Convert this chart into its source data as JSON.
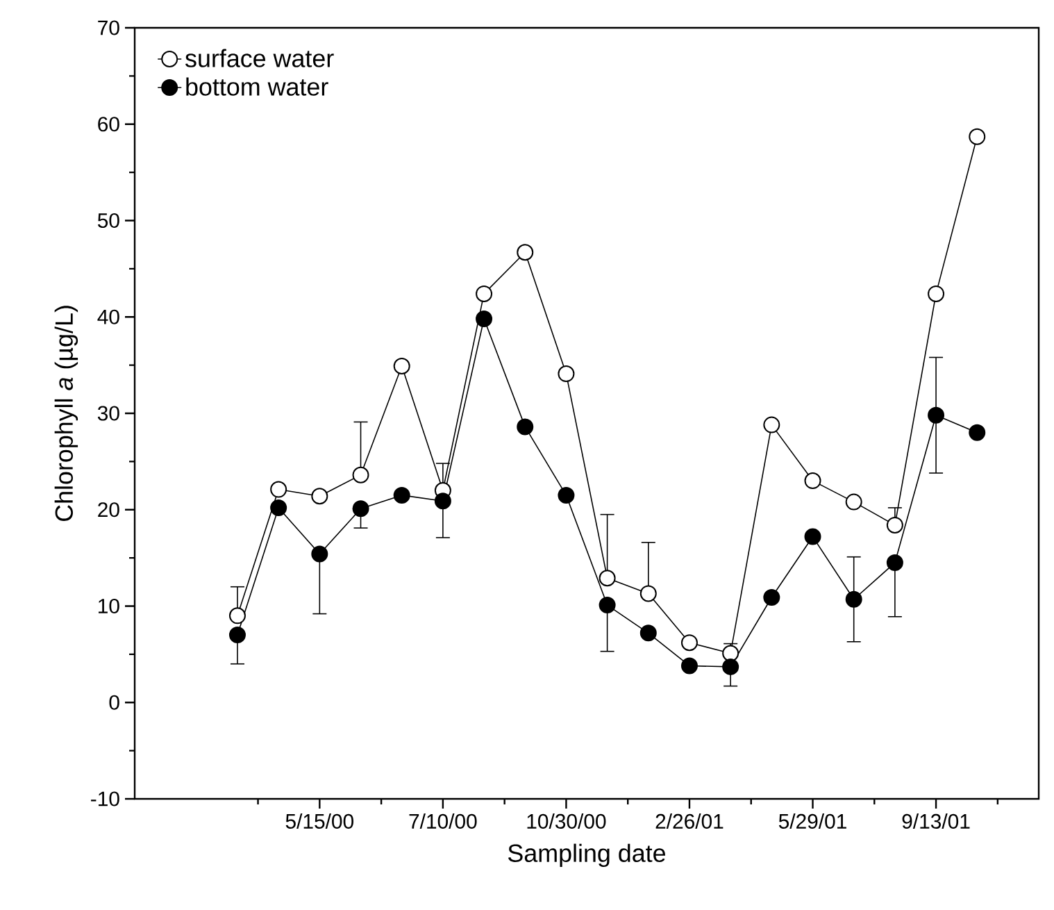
{
  "chart_data": {
    "type": "line",
    "xlabel": "Sampling date",
    "ylabel": "Chlorophyll *a* (µg/L)",
    "categories": [
      null,
      null,
      "5/15/00",
      null,
      null,
      "7/10/00",
      null,
      null,
      "10/30/00",
      null,
      null,
      "2/26/01",
      null,
      null,
      "5/29/01",
      null,
      null,
      "9/13/01",
      null
    ],
    "series": [
      {
        "name": "surface water",
        "color": "#000000",
        "values": [
          9.0,
          22.1,
          21.4,
          23.6,
          34.9,
          22.0,
          42.4,
          46.7,
          34.1,
          12.9,
          11.3,
          6.2,
          5.1,
          28.8,
          23.0,
          20.8,
          18.4,
          42.4,
          58.7
        ],
        "errors": [
          [
            9.0,
            12
          ],
          null,
          null,
          [
            23.6,
            29.1
          ],
          null,
          [
            22.0,
            24.8
          ],
          null,
          null,
          null,
          [
            12.9,
            19.5
          ],
          [
            11.3,
            16.6
          ],
          null,
          [
            5.1,
            6.1
          ],
          null,
          null,
          null,
          [
            18.4,
            20.2
          ],
          null,
          null
        ]
      },
      {
        "name": "bottom water",
        "color": "#000000",
        "values": [
          7.0,
          20.2,
          15.4,
          20.1,
          21.5,
          20.9,
          39.8,
          28.6,
          21.5,
          10.1,
          7.2,
          3.8,
          3.7,
          10.9,
          17.2,
          10.7,
          14.5,
          29.8,
          28.0
        ],
        "errors": [
          [
            4,
            7.0
          ],
          null,
          [
            9.2,
            15.4
          ],
          [
            18.1,
            20.1
          ],
          null,
          [
            17.1,
            20.9
          ],
          null,
          null,
          null,
          [
            5.3,
            10.1
          ],
          null,
          null,
          [
            1.7,
            3.7
          ],
          null,
          null,
          [
            6.3,
            15.1
          ],
          [
            8.9,
            14.5
          ],
          [
            23.8,
            35.8
          ],
          null
        ]
      }
    ],
    "ylim": [
      -10,
      70
    ],
    "yticks": [
      -10,
      0,
      10,
      20,
      30,
      40,
      50,
      60,
      70
    ],
    "legend": "top left",
    "marker": "circle",
    "line_style": "solid"
  }
}
